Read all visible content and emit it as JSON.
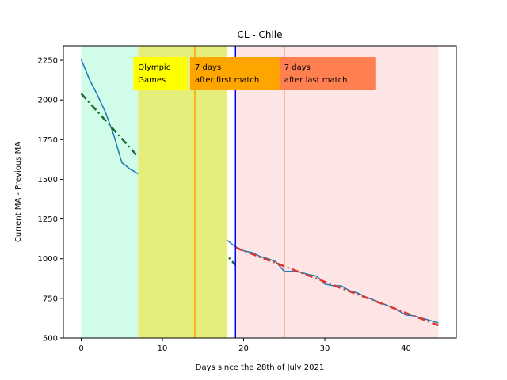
{
  "chart_data": {
    "type": "line",
    "title": "CL - Chile",
    "xlabel": "Days since the 28th of July 2021",
    "ylabel": "Current MA - Previous MA",
    "xlim": [
      -2.2,
      46.2
    ],
    "ylim": [
      500,
      2340
    ],
    "xticks": [
      0,
      10,
      20,
      30,
      40
    ],
    "yticks": [
      500,
      750,
      1000,
      1250,
      1500,
      1750,
      2000,
      2250
    ],
    "grid": false,
    "regions": [
      {
        "x0": 0,
        "x1": 7,
        "color": "#d0fce9",
        "layer": "back"
      },
      {
        "x0": 19,
        "x1": 44,
        "color": "#fde5e5",
        "layer": "back"
      },
      {
        "x0": 7,
        "x1": 18,
        "color": "#e6ee7b",
        "layer": "front"
      }
    ],
    "vlines": [
      {
        "x": 14,
        "color": "#ffa500"
      },
      {
        "x": 19,
        "color": "#0000ff"
      },
      {
        "x": 25,
        "color": "#ff7f50"
      }
    ],
    "annotations": [
      {
        "lines": [
          "Olympic",
          "Games"
        ],
        "x": 7,
        "bg": "#ffff00"
      },
      {
        "lines": [
          "7 days",
          "after first match"
        ],
        "x": 14,
        "bg": "#ffa500"
      },
      {
        "lines": [
          "7 days",
          "after last match"
        ],
        "x": 25,
        "bg": "#ff7f50"
      }
    ],
    "series": [
      {
        "style": "solid",
        "color": "#1f77b4",
        "x": [
          0,
          1,
          2,
          3,
          4,
          5,
          6,
          7,
          8,
          9,
          10,
          11,
          12,
          13,
          14,
          15,
          16,
          17,
          18,
          19,
          20,
          21,
          22,
          23,
          24,
          25,
          26,
          27,
          28,
          29,
          30,
          31,
          32,
          33,
          34,
          35,
          36,
          37,
          38,
          39,
          40,
          41,
          42,
          43,
          44
        ],
        "y": [
          2255,
          2130,
          2030,
          1920,
          1780,
          1605,
          1565,
          1535,
          1460,
          1405,
          1325,
          1328,
          1350,
          1318,
          1298,
          1225,
          1180,
          1150,
          1115,
          1075,
          1050,
          1040,
          1015,
          1000,
          980,
          920,
          920,
          915,
          900,
          890,
          840,
          830,
          830,
          800,
          785,
          760,
          740,
          720,
          700,
          675,
          645,
          640,
          625,
          610,
          595
        ]
      },
      {
        "style": "dashdot",
        "color": "#1a6b2c",
        "x": [
          0,
          19
        ],
        "y": [
          2040,
          960
        ]
      },
      {
        "style": "dashdot",
        "color": "#e0352b",
        "x": [
          19,
          44
        ],
        "y": [
          1070,
          580
        ]
      }
    ]
  }
}
